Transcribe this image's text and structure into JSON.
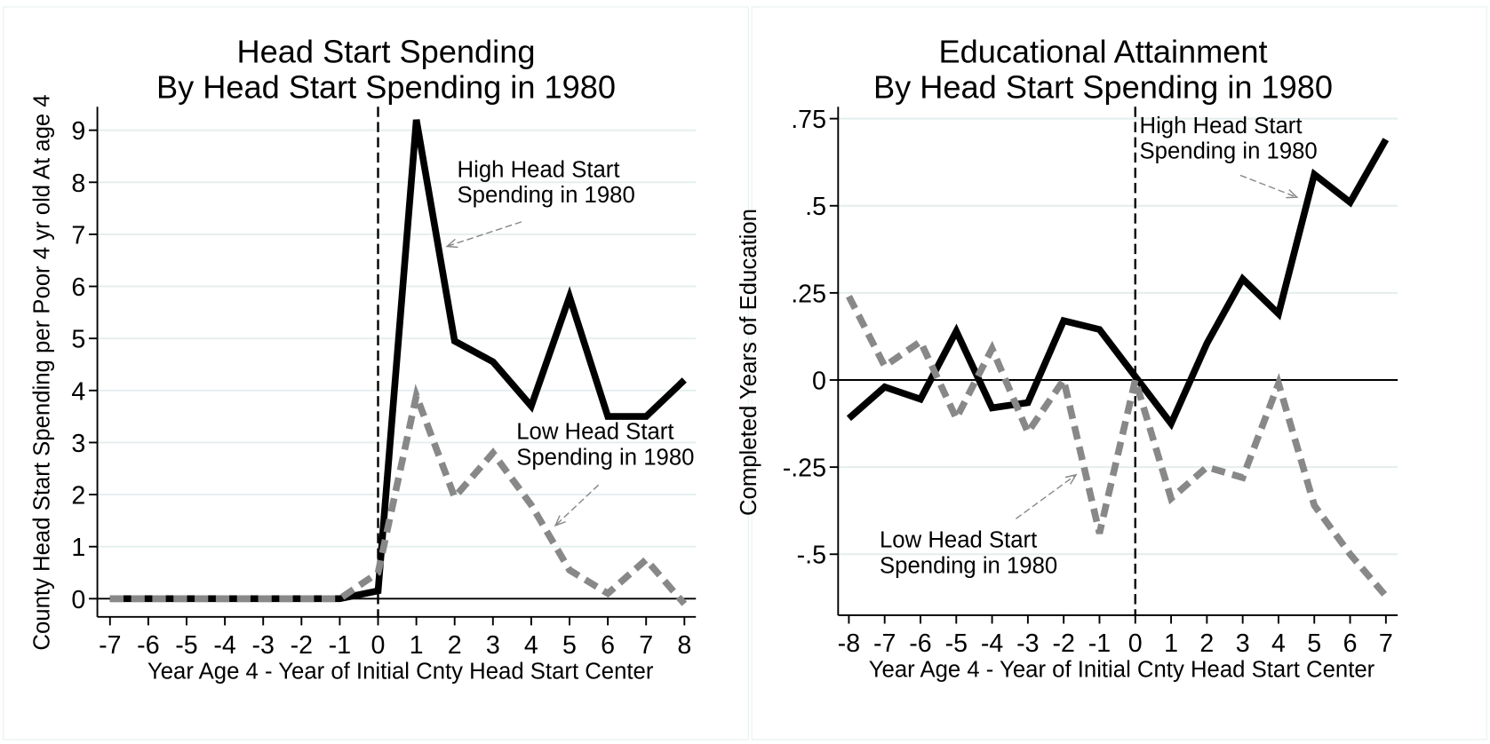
{
  "chart_data": [
    {
      "type": "line",
      "title": [
        "Head Start Spending",
        "By Head Start Spending in 1980"
      ],
      "xlabel": "Year Age 4 - Year of Initial Cnty Head Start Center",
      "ylabel": "County Head Start Spending per Poor 4 yr old At age 4",
      "x": [
        -7,
        -6,
        -5,
        -4,
        -3,
        -2,
        -1,
        0,
        1,
        2,
        3,
        4,
        5,
        6,
        7,
        8
      ],
      "series": [
        {
          "color": "#000000",
          "dash": false,
          "values": [
            0,
            0,
            0,
            0,
            0,
            0,
            0,
            0.15,
            9.2,
            4.95,
            4.55,
            3.7,
            5.8,
            3.5,
            3.5,
            4.2
          ]
        },
        {
          "color": "#888888",
          "dash": true,
          "values": [
            0,
            0,
            0,
            0,
            0,
            0,
            0,
            0.5,
            3.9,
            1.95,
            2.8,
            1.8,
            0.55,
            0.1,
            0.75,
            -0.1
          ]
        }
      ],
      "annotations": [
        {
          "text": [
            "High Head Start",
            "Spending in 1980"
          ]
        },
        {
          "text": [
            "Low Head Start",
            "Spending in 1980"
          ]
        }
      ],
      "xlim": [
        -7.33,
        8.3
      ],
      "ylim": [
        -0.35,
        9.45
      ],
      "xticks": [
        -7,
        -6,
        -5,
        -4,
        -3,
        -2,
        -1,
        0,
        1,
        2,
        3,
        4,
        5,
        6,
        7,
        8
      ],
      "yticks": [
        0,
        1,
        2,
        3,
        4,
        5,
        6,
        7,
        8,
        9
      ],
      "grid": true
    },
    {
      "type": "line",
      "title": [
        "Educational Attainment",
        "By Head Start Spending in 1980"
      ],
      "xlabel": "Year Age 4 - Year of Initial Cnty Head Start Center",
      "ylabel": "Completed Years of Education",
      "x": [
        -8,
        -7,
        -6,
        -5,
        -4,
        -3,
        -2,
        -1,
        0,
        1,
        2,
        3,
        4,
        5,
        6,
        7
      ],
      "series": [
        {
          "color": "#000000",
          "dash": false,
          "values": [
            -0.11,
            -0.02,
            -0.055,
            0.14,
            -0.08,
            -0.065,
            0.17,
            0.145,
            0.01,
            -0.125,
            0.105,
            0.29,
            0.19,
            0.59,
            0.51,
            0.69
          ]
        },
        {
          "color": "#888888",
          "dash": true,
          "values": [
            0.24,
            0.04,
            0.11,
            -0.11,
            0.09,
            -0.15,
            0,
            -0.44,
            0,
            -0.34,
            -0.25,
            -0.28,
            -0.01,
            -0.36,
            -0.5,
            -0.62
          ]
        }
      ],
      "annotations": [
        {
          "text": [
            "High Head Start",
            "Spending in 1980"
          ]
        },
        {
          "text": [
            "Low Head Start",
            "Spending in 1980"
          ]
        }
      ],
      "xlim": [
        -8.3,
        7.33
      ],
      "ylim": [
        -0.675,
        0.784
      ],
      "xticks": [
        -8,
        -7,
        -6,
        -5,
        -4,
        -3,
        -2,
        -1,
        0,
        1,
        2,
        3,
        4,
        5,
        6,
        7
      ],
      "yticks": [
        {
          "value": 0.75,
          "label": ".75"
        },
        {
          "value": 0.5,
          "label": ".5"
        },
        {
          "value": 0.25,
          "label": ".25"
        },
        0,
        {
          "value": -0.25,
          "label": "-.25"
        },
        {
          "value": -0.5,
          "label": "-.5"
        }
      ],
      "grid": true
    }
  ]
}
